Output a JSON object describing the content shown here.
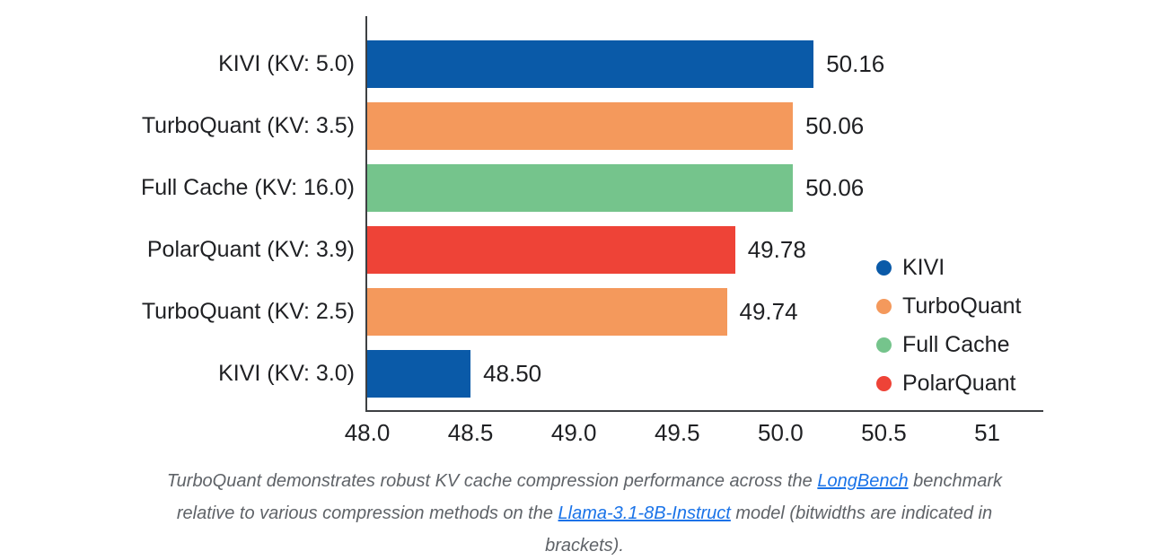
{
  "chart_data": {
    "type": "bar",
    "orientation": "horizontal",
    "title": "",
    "xlabel": "",
    "ylabel": "",
    "grid": false,
    "xlim": [
      48.0,
      51.28
    ],
    "categories": [
      "KIVI (KV: 5.0)",
      "TurboQuant (KV: 3.5)",
      "Full Cache (KV: 16.0)",
      "PolarQuant (KV: 3.9)",
      "TurboQuant (KV: 2.5)",
      "KIVI (KV: 3.0)"
    ],
    "values": [
      50.16,
      50.06,
      50.06,
      49.78,
      49.74,
      48.5
    ],
    "value_labels": [
      "50.16",
      "50.06",
      "50.06",
      "49.78",
      "49.74",
      "48.50"
    ],
    "bar_series": [
      "KIVI",
      "TurboQuant",
      "Full Cache",
      "PolarQuant",
      "TurboQuant",
      "KIVI"
    ],
    "bar_colors": [
      "#0A5AA8",
      "#F4995C",
      "#75C48C",
      "#EE4337",
      "#F4995C",
      "#0A5AA8"
    ],
    "x_ticks": [
      {
        "value": 48.0,
        "label": "48.0"
      },
      {
        "value": 48.5,
        "label": "48.5"
      },
      {
        "value": 49.0,
        "label": "49.0"
      },
      {
        "value": 49.5,
        "label": "49.5"
      },
      {
        "value": 50.0,
        "label": "50.0"
      },
      {
        "value": 50.5,
        "label": "50.5"
      },
      {
        "value": 51.0,
        "label": "51"
      }
    ],
    "legend": [
      {
        "name": "KIVI",
        "color": "#0A5AA8"
      },
      {
        "name": "TurboQuant",
        "color": "#F4995C"
      },
      {
        "name": "Full Cache",
        "color": "#75C48C"
      },
      {
        "name": "PolarQuant",
        "color": "#EE4337"
      }
    ],
    "legend_position": "right-inside"
  },
  "caption": {
    "lines": [
      [
        {
          "text": "TurboQuant demonstrates robust KV cache compression performance across the ",
          "link": false
        },
        {
          "text": "LongBench",
          "link": true
        },
        {
          "text": " benchmark",
          "link": false
        }
      ],
      [
        {
          "text": "relative to various compression methods on the ",
          "link": false
        },
        {
          "text": "Llama-3.1-8B-Instruct",
          "link": true
        },
        {
          "text": " model (bitwidths are indicated in",
          "link": false
        }
      ],
      [
        {
          "text": "brackets).",
          "link": false
        }
      ]
    ]
  },
  "colors": {
    "axis": "#3d4043",
    "text": "#1f2023",
    "caption_text": "#5f6368",
    "link": "#1a73e8",
    "background": "#ffffff"
  }
}
